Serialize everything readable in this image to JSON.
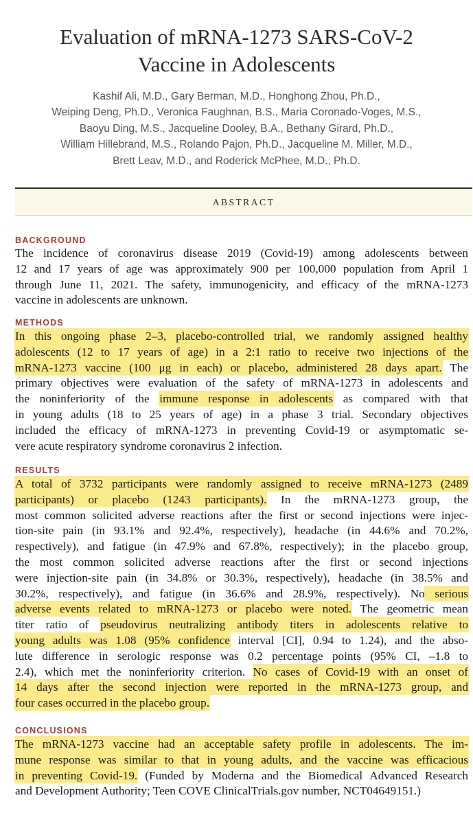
{
  "title": {
    "line1": "Evaluation of mRNA-1273 SARS-CoV-2",
    "line2": "Vaccine in Adolescents"
  },
  "authors": [
    "Kashif Ali, M.D., Gary Berman, M.D., Honghong Zhou, Ph.D.,",
    "Weiping Deng, Ph.D., Veronica Faughnan, B.S., Maria Coronado-Voges, M.S.,",
    "Baoyu Ding, M.S., Jacqueline Dooley, B.A., Bethany Girard, Ph.D.,",
    "William Hillebrand, M.S., Rolando Pajon, Ph.D., Jacqueline M. Miller, M.D.,",
    "Brett Leav, M.D., and Roderick McPhee, M.D., Ph.D."
  ],
  "abstract_label": "ABSTRACT",
  "sections": {
    "background": {
      "heading": "BACKGROUND",
      "lines": [
        "The incidence of coronavirus disease 2019 (Covid-19) among adolescents between",
        "12 and 17 years of age was approximately 900 per 100,000 population from April 1",
        "through June 11, 2021. The safety, immunogenicity, and efficacy of the mRNA-1273",
        "vaccine in adolescents are unknown."
      ]
    },
    "methods": {
      "heading": "METHODS",
      "l1": "In this ongoing phase 2–3, placebo-controlled trial, we randomly assigned healthy",
      "l2": "adolescents (12 to 17 years of age) in a 2:1 ratio to receive two injections of the",
      "l3a": "mRNA-1273 vaccine (100 μg in each) or placebo, administered 28 days apart.",
      "l3b": " The",
      "l4": "primary objectives were evaluation of the safety of mRNA-1273 in adolescents and",
      "l5a": "the noninferiority of the ",
      "l5b": "immune response in adolescents",
      "l5c": " as compared with that",
      "l6": "in young adults (18 to 25 years of age) in a phase 3 trial. Secondary objectives",
      "l7": "included the efficacy of mRNA-1273 in preventing Covid-19 or asymptomatic se-",
      "l8": "vere acute respiratory syndrome coronavirus 2 infection."
    },
    "results": {
      "heading": "RESULTS",
      "l1": "A total of 3732 participants were randomly assigned to receive mRNA-1273 (2489",
      "l2a": "participants) or placebo (1243 participants).",
      "l2b": " In the mRNA-1273 group, the",
      "l3": "most common solicited adverse reactions after the first or second injections were injec-",
      "l4": "tion-site pain (in 93.1% and 92.4%, respectively), headache (in 44.6% and 70.2%,",
      "l5": "respectively), and fatigue (in 47.9% and 67.8%, respectively); in the placebo group,",
      "l6": "the most common solicited adverse reactions after the first or second injections",
      "l7": "were injection-site pain (in 34.8% or 30.3%, respectively), headache (in 38.5% and",
      "l8a": "30.2%, respectively), and fatigue (in 36.6% and 28.9%, respectively). No",
      "l8b": " serious",
      "l9a": "adverse events related to mRNA-1273 or placebo were noted.",
      "l9b": " The geometric mean",
      "l10a": "titer ratio of ",
      "l10b": "pseudovirus neutralizing antibody titers in adolescents relative to",
      "l11a": "young adults was 1.08 (95% confidence",
      "l11b": " interval [CI], 0.94 to 1.24), and the abso-",
      "l12": "lute difference in serologic response was 0.2 percentage points (95% CI, –1.8 to",
      "l13a": "2.4), which met the noninferiority criterion. ",
      "l13b": "No cases of Covid-19 with an onset of",
      "l14": "14 days after the second injection were reported in the mRNA-1273 group, and",
      "l15": "four cases occurred in the placebo group."
    },
    "conclusions": {
      "heading": "CONCLUSIONS",
      "l1": "The mRNA-1273 vaccine had an acceptable safety profile in adolescents. The im-",
      "l2": "mune response was similar to that in young adults, and the vaccine was efficacious",
      "l3a": "in preventing Covid-19.",
      "l3b": " (Funded by Moderna and the Biomedical Advanced Research",
      "l4": "and Development Authority; Teen COVE ClinicalTrials.gov number, NCT04649151.)"
    }
  },
  "colors": {
    "heading_red": "#b03a2e",
    "highlight_yellow": "#fbeb8a",
    "abstract_bar_bg": "#fbf8e7"
  }
}
